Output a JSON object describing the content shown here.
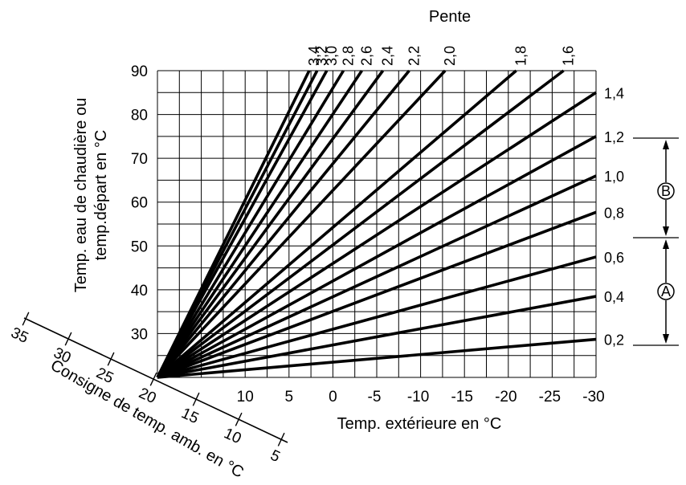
{
  "chart_data": {
    "type": "line",
    "title": "",
    "xlabel": "Temp. extérieure en °C",
    "ylabel_line1": "Temp. eau de chaudière ou",
    "ylabel_line2": "temp.départ en °C",
    "slope_axis_title": "Pente",
    "setpoint_axis_title": "Consigne de temp. amb. en °C",
    "xlim": [
      20,
      -30
    ],
    "ylim": [
      20,
      90
    ],
    "x_ticks": [
      "10",
      "5",
      "0",
      "-5",
      "-10",
      "-15",
      "-20",
      "-25",
      "-30"
    ],
    "x_tick_values": [
      10,
      5,
      0,
      -5,
      -10,
      -15,
      -20,
      -25,
      -30
    ],
    "y_ticks": [
      "30",
      "40",
      "50",
      "60",
      "70",
      "80",
      "90"
    ],
    "y_tick_values": [
      30,
      40,
      50,
      60,
      70,
      80,
      90
    ],
    "setpoint_ticks": [
      "35",
      "30",
      "25",
      "20",
      "15",
      "10",
      "5"
    ],
    "grid": true,
    "series": [
      {
        "label": "0,2",
        "slope": 0.2,
        "points": [
          [
            20,
            20
          ],
          [
            -30,
            28.7
          ]
        ]
      },
      {
        "label": "0,4",
        "slope": 0.4,
        "points": [
          [
            20,
            20
          ],
          [
            -30,
            38.5
          ]
        ]
      },
      {
        "label": "0,6",
        "slope": 0.6,
        "points": [
          [
            20,
            20
          ],
          [
            -30,
            47.5
          ]
        ]
      },
      {
        "label": "0,8",
        "slope": 0.8,
        "points": [
          [
            20,
            20
          ],
          [
            -30,
            57.7
          ]
        ]
      },
      {
        "label": "1,0",
        "slope": 1.0,
        "points": [
          [
            20,
            20
          ],
          [
            -30,
            66
          ]
        ]
      },
      {
        "label": "1,2",
        "slope": 1.2,
        "points": [
          [
            20,
            20
          ],
          [
            -30,
            75
          ]
        ]
      },
      {
        "label": "1,4",
        "slope": 1.4,
        "points": [
          [
            20,
            20
          ],
          [
            -30,
            85
          ]
        ]
      },
      {
        "label": "1,6",
        "slope": 1.6,
        "points": [
          [
            20,
            20
          ],
          [
            -26.3,
            90
          ]
        ]
      },
      {
        "label": "1,8",
        "slope": 1.8,
        "points": [
          [
            20,
            20
          ],
          [
            -20.9,
            90
          ]
        ]
      },
      {
        "label": "2,0",
        "slope": 2.0,
        "points": [
          [
            20,
            20
          ],
          [
            -12.8,
            90
          ]
        ]
      },
      {
        "label": "2,2",
        "slope": 2.2,
        "points": [
          [
            20,
            20
          ],
          [
            -8.7,
            90
          ]
        ]
      },
      {
        "label": "2,4",
        "slope": 2.4,
        "points": [
          [
            20,
            20
          ],
          [
            -5.7,
            90
          ]
        ]
      },
      {
        "label": "2,6",
        "slope": 2.6,
        "points": [
          [
            20,
            20
          ],
          [
            -3.3,
            90
          ]
        ]
      },
      {
        "label": "2,8",
        "slope": 2.8,
        "points": [
          [
            20,
            20
          ],
          [
            -1.2,
            90
          ]
        ]
      },
      {
        "label": "3,0",
        "slope": 3.0,
        "points": [
          [
            20,
            20
          ],
          [
            0.7,
            90
          ]
        ]
      },
      {
        "label": "3,2",
        "slope": 3.2,
        "points": [
          [
            20,
            20
          ],
          [
            1.8,
            90
          ]
        ]
      },
      {
        "label": "3,4",
        "slope": 3.4,
        "points": [
          [
            20,
            20
          ],
          [
            2.7,
            90
          ]
        ]
      }
    ],
    "ranges": [
      {
        "label": "B",
        "from": 1.2,
        "to": 0.7
      },
      {
        "label": "A",
        "from": 0.7,
        "to": 0.2
      }
    ]
  }
}
